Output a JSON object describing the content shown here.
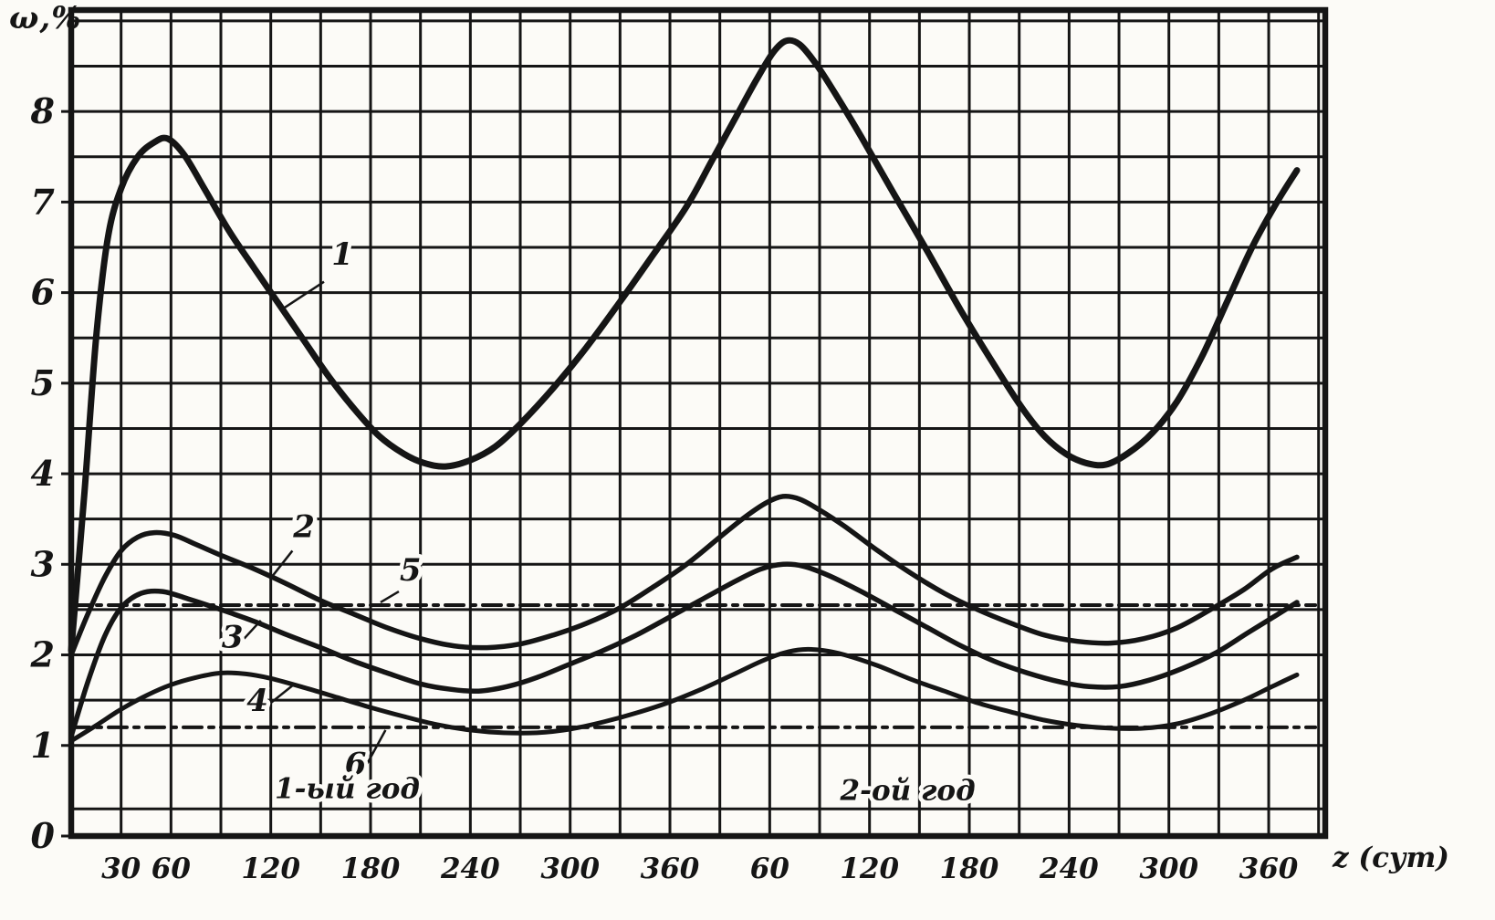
{
  "figure": {
    "background": "#fcfbf7",
    "ink": "#151515"
  },
  "chart_data": {
    "type": "line",
    "title": "",
    "ylabel": "ω,%",
    "xlabel": "z (сут)",
    "xlim": [
      0,
      754
    ],
    "ylim": [
      0,
      9.12
    ],
    "grid": {
      "x_step_days": 30,
      "y_lines": [
        0.3,
        1,
        1.5,
        2,
        2.5,
        3,
        3.5,
        4,
        4.5,
        5,
        5.5,
        6,
        6.5,
        7,
        7.5,
        8,
        8.5,
        9
      ]
    },
    "x_ticks": [
      {
        "label": "30",
        "day": 30
      },
      {
        "label": "60",
        "day": 60
      },
      {
        "label": "120",
        "day": 120
      },
      {
        "label": "180",
        "day": 180
      },
      {
        "label": "240",
        "day": 240
      },
      {
        "label": "300",
        "day": 300
      },
      {
        "label": "360",
        "day": 360
      },
      {
        "label": "60",
        "day": 420
      },
      {
        "label": "120",
        "day": 480
      },
      {
        "label": "180",
        "day": 540
      },
      {
        "label": "240",
        "day": 600
      },
      {
        "label": "300",
        "day": 660
      },
      {
        "label": "360",
        "day": 720
      }
    ],
    "y_ticks": [
      0,
      1,
      2,
      3,
      4,
      5,
      6,
      7,
      8
    ],
    "annotations": [
      {
        "name": "year-1-label",
        "text": "1-ый год",
        "x": 166,
        "y": 0.42
      },
      {
        "name": "year-2-label",
        "text": "2-ой год",
        "x": 503,
        "y": 0.4
      }
    ],
    "series": [
      {
        "name": "curve-6",
        "label": "6",
        "style": "dashdot",
        "width": 4,
        "label_pos": {
          "x": 171,
          "y": 0.68
        },
        "leader": [
          [
            178,
            0.8
          ],
          [
            189,
            1.17
          ]
        ],
        "points": [
          [
            0,
            1.2
          ],
          [
            748,
            1.2
          ]
        ]
      },
      {
        "name": "curve-5",
        "label": "5",
        "style": "dashdot",
        "width": 4,
        "label_pos": {
          "x": 204,
          "y": 2.82
        },
        "leader": [
          [
            197,
            2.7
          ],
          [
            186,
            2.58
          ]
        ],
        "points": [
          [
            0,
            2.55
          ],
          [
            748,
            2.55
          ]
        ]
      },
      {
        "name": "curve-4",
        "label": "4",
        "style": "solid",
        "width": 5,
        "label_pos": {
          "x": 112,
          "y": 1.38
        },
        "leader": [
          [
            120,
            1.47
          ],
          [
            133,
            1.66
          ]
        ],
        "points": [
          [
            0,
            1.05
          ],
          [
            15,
            1.22
          ],
          [
            30,
            1.4
          ],
          [
            45,
            1.55
          ],
          [
            60,
            1.67
          ],
          [
            75,
            1.75
          ],
          [
            90,
            1.8
          ],
          [
            105,
            1.79
          ],
          [
            120,
            1.74
          ],
          [
            140,
            1.64
          ],
          [
            160,
            1.53
          ],
          [
            180,
            1.42
          ],
          [
            200,
            1.32
          ],
          [
            220,
            1.23
          ],
          [
            240,
            1.17
          ],
          [
            260,
            1.14
          ],
          [
            280,
            1.14
          ],
          [
            300,
            1.18
          ],
          [
            320,
            1.26
          ],
          [
            340,
            1.36
          ],
          [
            360,
            1.48
          ],
          [
            380,
            1.63
          ],
          [
            400,
            1.8
          ],
          [
            415,
            1.93
          ],
          [
            428,
            2.02
          ],
          [
            440,
            2.06
          ],
          [
            452,
            2.05
          ],
          [
            465,
            2.0
          ],
          [
            485,
            1.88
          ],
          [
            505,
            1.73
          ],
          [
            525,
            1.6
          ],
          [
            545,
            1.47
          ],
          [
            565,
            1.37
          ],
          [
            585,
            1.28
          ],
          [
            605,
            1.22
          ],
          [
            625,
            1.19
          ],
          [
            645,
            1.19
          ],
          [
            665,
            1.24
          ],
          [
            685,
            1.35
          ],
          [
            705,
            1.5
          ],
          [
            722,
            1.65
          ],
          [
            737,
            1.78
          ]
        ]
      },
      {
        "name": "curve-3",
        "label": "3",
        "style": "solid",
        "width": 5.5,
        "label_pos": {
          "x": 97,
          "y": 2.08
        },
        "leader": [
          [
            104,
            2.18
          ],
          [
            114,
            2.38
          ]
        ],
        "points": [
          [
            0,
            1.1
          ],
          [
            10,
            1.7
          ],
          [
            20,
            2.2
          ],
          [
            30,
            2.52
          ],
          [
            42,
            2.68
          ],
          [
            55,
            2.7
          ],
          [
            70,
            2.62
          ],
          [
            90,
            2.5
          ],
          [
            110,
            2.37
          ],
          [
            130,
            2.22
          ],
          [
            150,
            2.08
          ],
          [
            170,
            1.93
          ],
          [
            190,
            1.8
          ],
          [
            210,
            1.68
          ],
          [
            228,
            1.62
          ],
          [
            245,
            1.6
          ],
          [
            262,
            1.65
          ],
          [
            280,
            1.75
          ],
          [
            300,
            1.9
          ],
          [
            320,
            2.05
          ],
          [
            340,
            2.22
          ],
          [
            360,
            2.42
          ],
          [
            380,
            2.62
          ],
          [
            400,
            2.82
          ],
          [
            415,
            2.95
          ],
          [
            428,
            3.0
          ],
          [
            440,
            2.98
          ],
          [
            455,
            2.88
          ],
          [
            475,
            2.7
          ],
          [
            495,
            2.5
          ],
          [
            515,
            2.3
          ],
          [
            535,
            2.1
          ],
          [
            555,
            1.93
          ],
          [
            575,
            1.8
          ],
          [
            595,
            1.7
          ],
          [
            612,
            1.65
          ],
          [
            630,
            1.65
          ],
          [
            648,
            1.72
          ],
          [
            668,
            1.85
          ],
          [
            688,
            2.02
          ],
          [
            708,
            2.25
          ],
          [
            723,
            2.42
          ],
          [
            737,
            2.58
          ]
        ]
      },
      {
        "name": "curve-2",
        "label": "2",
        "style": "solid",
        "width": 5.5,
        "label_pos": {
          "x": 140,
          "y": 3.3
        },
        "leader": [
          [
            133,
            3.15
          ],
          [
            121,
            2.87
          ]
        ],
        "points": [
          [
            0,
            2.0
          ],
          [
            10,
            2.45
          ],
          [
            20,
            2.85
          ],
          [
            30,
            3.15
          ],
          [
            40,
            3.3
          ],
          [
            50,
            3.35
          ],
          [
            62,
            3.32
          ],
          [
            75,
            3.22
          ],
          [
            90,
            3.1
          ],
          [
            110,
            2.95
          ],
          [
            130,
            2.78
          ],
          [
            150,
            2.6
          ],
          [
            170,
            2.45
          ],
          [
            190,
            2.3
          ],
          [
            210,
            2.18
          ],
          [
            230,
            2.1
          ],
          [
            250,
            2.08
          ],
          [
            270,
            2.12
          ],
          [
            290,
            2.22
          ],
          [
            310,
            2.35
          ],
          [
            330,
            2.52
          ],
          [
            350,
            2.75
          ],
          [
            370,
            3.0
          ],
          [
            390,
            3.3
          ],
          [
            405,
            3.52
          ],
          [
            418,
            3.68
          ],
          [
            428,
            3.75
          ],
          [
            438,
            3.72
          ],
          [
            450,
            3.6
          ],
          [
            465,
            3.42
          ],
          [
            485,
            3.15
          ],
          [
            505,
            2.9
          ],
          [
            525,
            2.68
          ],
          [
            545,
            2.5
          ],
          [
            565,
            2.35
          ],
          [
            585,
            2.22
          ],
          [
            605,
            2.15
          ],
          [
            625,
            2.13
          ],
          [
            645,
            2.18
          ],
          [
            665,
            2.3
          ],
          [
            685,
            2.5
          ],
          [
            705,
            2.72
          ],
          [
            722,
            2.95
          ],
          [
            737,
            3.08
          ]
        ]
      },
      {
        "name": "curve-1",
        "label": "1",
        "style": "solid",
        "width": 7,
        "label_pos": {
          "x": 163,
          "y": 6.31
        },
        "leader": [
          [
            152,
            6.12
          ],
          [
            128,
            5.83
          ]
        ],
        "points": [
          [
            0,
            2.05
          ],
          [
            8,
            3.8
          ],
          [
            15,
            5.5
          ],
          [
            22,
            6.6
          ],
          [
            30,
            7.15
          ],
          [
            40,
            7.5
          ],
          [
            50,
            7.66
          ],
          [
            58,
            7.7
          ],
          [
            68,
            7.52
          ],
          [
            80,
            7.15
          ],
          [
            95,
            6.68
          ],
          [
            110,
            6.27
          ],
          [
            125,
            5.87
          ],
          [
            140,
            5.47
          ],
          [
            155,
            5.07
          ],
          [
            170,
            4.72
          ],
          [
            185,
            4.42
          ],
          [
            200,
            4.22
          ],
          [
            212,
            4.12
          ],
          [
            225,
            4.08
          ],
          [
            240,
            4.15
          ],
          [
            255,
            4.3
          ],
          [
            270,
            4.55
          ],
          [
            290,
            4.95
          ],
          [
            310,
            5.4
          ],
          [
            330,
            5.9
          ],
          [
            350,
            6.42
          ],
          [
            370,
            6.95
          ],
          [
            385,
            7.45
          ],
          [
            400,
            7.95
          ],
          [
            412,
            8.35
          ],
          [
            422,
            8.65
          ],
          [
            430,
            8.78
          ],
          [
            438,
            8.74
          ],
          [
            448,
            8.52
          ],
          [
            460,
            8.18
          ],
          [
            475,
            7.72
          ],
          [
            495,
            7.08
          ],
          [
            515,
            6.45
          ],
          [
            535,
            5.8
          ],
          [
            555,
            5.2
          ],
          [
            572,
            4.72
          ],
          [
            585,
            4.42
          ],
          [
            598,
            4.22
          ],
          [
            610,
            4.12
          ],
          [
            622,
            4.1
          ],
          [
            635,
            4.22
          ],
          [
            650,
            4.45
          ],
          [
            665,
            4.8
          ],
          [
            680,
            5.3
          ],
          [
            695,
            5.9
          ],
          [
            710,
            6.5
          ],
          [
            725,
            7.0
          ],
          [
            737,
            7.35
          ]
        ]
      }
    ]
  }
}
